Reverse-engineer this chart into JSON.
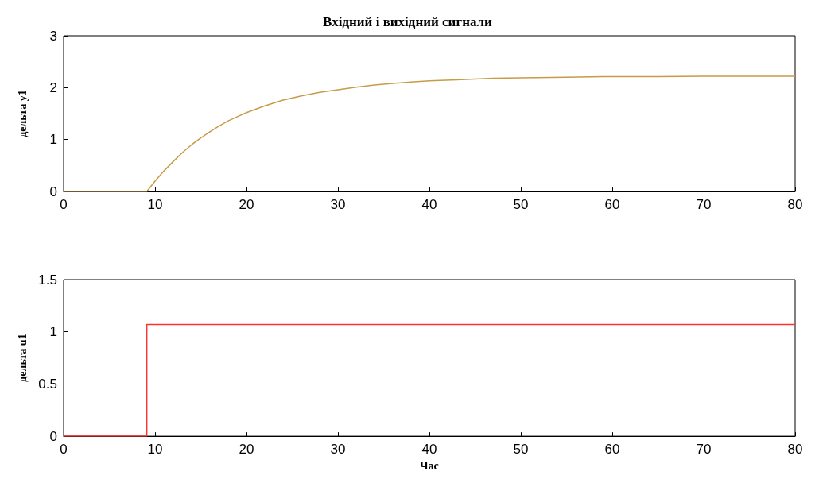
{
  "chart_data": [
    {
      "type": "line",
      "title": "Вхідний і вихідний сигнали",
      "ylabel": "дельта y1",
      "xlim": [
        0,
        80
      ],
      "xticks": [
        0,
        10,
        20,
        30,
        40,
        50,
        60,
        70,
        80
      ],
      "ylim": [
        0,
        3
      ],
      "yticks": [
        0,
        1,
        2,
        3
      ],
      "series": [
        {
          "color": "#c89b48",
          "x": [
            0,
            9.1,
            10,
            11,
            12,
            13,
            14,
            15,
            16,
            17,
            18,
            19,
            20,
            22,
            24,
            26,
            28,
            30,
            32,
            34,
            36,
            38,
            40,
            43,
            47,
            50,
            55,
            59,
            65,
            70,
            75,
            80
          ],
          "values": [
            0,
            0,
            0.2,
            0.4,
            0.58,
            0.75,
            0.9,
            1.03,
            1.15,
            1.26,
            1.36,
            1.44,
            1.52,
            1.65,
            1.76,
            1.84,
            1.91,
            1.96,
            2.01,
            2.05,
            2.08,
            2.11,
            2.13,
            2.15,
            2.18,
            2.19,
            2.2,
            2.21,
            2.21,
            2.22,
            2.22,
            2.22
          ]
        }
      ]
    },
    {
      "type": "step",
      "xlabel": "Час",
      "ylabel": "дельта u1",
      "xlim": [
        0,
        80
      ],
      "xticks": [
        0,
        10,
        20,
        30,
        40,
        50,
        60,
        70,
        80
      ],
      "ylim": [
        0,
        1.5
      ],
      "yticks": [
        0,
        0.5,
        1,
        1.5
      ],
      "series": [
        {
          "color": "#ff3030",
          "x": [
            0,
            9.1,
            80
          ],
          "values": [
            0,
            1.07,
            1.07
          ]
        }
      ]
    }
  ]
}
